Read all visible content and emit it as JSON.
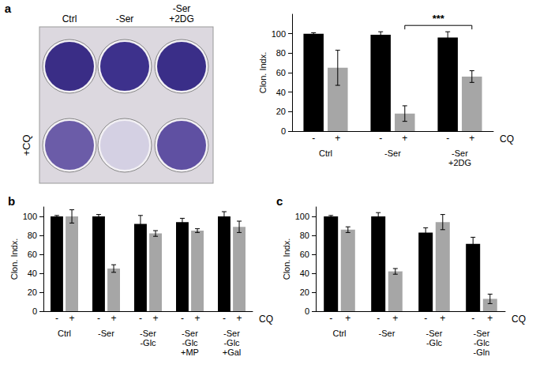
{
  "image": {
    "title": "a",
    "column_labels": [
      "Ctrl",
      "-Ser",
      "-Ser\n+2DG"
    ],
    "row_label": "+CQ"
  },
  "chart_data": [
    {
      "type": "bar",
      "y_label": "Clon. Indx.",
      "x_label": "CQ",
      "categories": [
        "Ctrl",
        "-Ser",
        "-Ser\n+2DG"
      ],
      "series": [
        {
          "name": "-",
          "color": "#000000",
          "values": [
            100,
            99,
            96
          ],
          "errors": [
            1,
            3,
            6
          ]
        },
        {
          "name": "+",
          "color": "#a6a6a6",
          "values": [
            65,
            18,
            56
          ],
          "errors": [
            18,
            8,
            6
          ]
        }
      ],
      "ylim": [
        0,
        120
      ],
      "yticks": [
        0,
        20,
        40,
        60,
        80,
        100
      ],
      "annotations": [
        {
          "text": "***",
          "from": "-Ser",
          "to": "-Ser\n+2DG"
        }
      ]
    },
    {
      "type": "bar",
      "title": "b",
      "y_label": "Clon. Indx.",
      "x_label": "CQ",
      "categories": [
        "Ctrl",
        "-Ser",
        "-Ser\n-Glc",
        "-Ser\n-Glc\n+MP",
        "-Ser\n-Glc\n+Gal"
      ],
      "series": [
        {
          "name": "-",
          "color": "#000000",
          "values": [
            100,
            100,
            92,
            94,
            100
          ],
          "errors": [
            1,
            2,
            9,
            4,
            5
          ]
        },
        {
          "name": "+",
          "color": "#a6a6a6",
          "values": [
            100,
            45,
            82,
            85,
            89
          ],
          "errors": [
            7,
            4,
            3,
            2,
            6
          ]
        }
      ],
      "ylim": [
        0,
        110
      ],
      "yticks": [
        0,
        20,
        40,
        60,
        80,
        100
      ]
    },
    {
      "type": "bar",
      "title": "c",
      "y_label": "Clon. Indx.",
      "x_label": "CQ",
      "categories": [
        "Ctrl",
        "-Ser",
        "-Ser\n-Glc",
        "-Ser\n-Glc\n-Gln"
      ],
      "series": [
        {
          "name": "-",
          "color": "#000000",
          "values": [
            100,
            100,
            83,
            71
          ],
          "errors": [
            1,
            4,
            5,
            7
          ]
        },
        {
          "name": "+",
          "color": "#a6a6a6",
          "values": [
            86,
            42,
            94,
            13
          ],
          "errors": [
            3,
            3,
            8,
            5
          ]
        }
      ],
      "ylim": [
        0,
        110
      ],
      "yticks": [
        0,
        20,
        40,
        60,
        80,
        100
      ]
    }
  ]
}
